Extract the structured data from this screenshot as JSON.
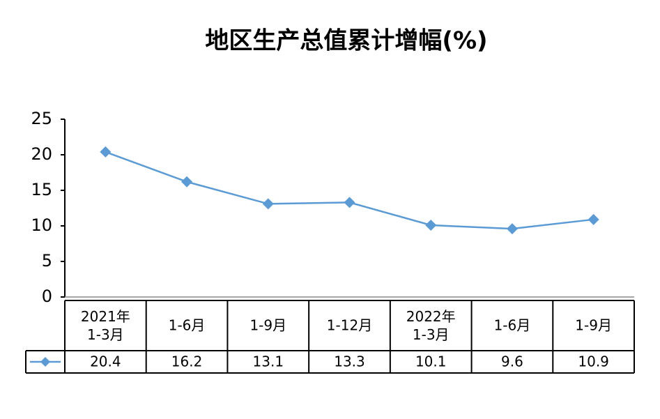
{
  "chart_data": {
    "type": "line",
    "title": "地区生产总值累计增幅(%)",
    "categories": [
      "2021年\n1-3月",
      "1-6月",
      "1-9月",
      "1-12月",
      "2022年\n1-3月",
      "1-6月",
      "1-9月"
    ],
    "series": [
      {
        "color": "#5b9bd5",
        "values": [
          20.4,
          16.2,
          13.1,
          13.3,
          10.1,
          9.6,
          10.9
        ]
      }
    ],
    "ylim": [
      0,
      25
    ],
    "yticks": [
      0,
      5,
      10,
      15,
      20,
      25
    ],
    "data_table": true
  }
}
